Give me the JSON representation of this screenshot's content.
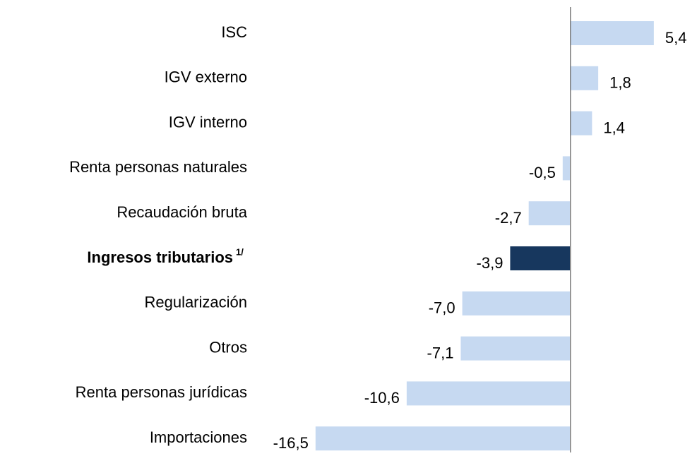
{
  "chart_data": {
    "type": "hbar",
    "categories": [
      "ISC",
      "IGV externo",
      "IGV interno",
      "Renta personas naturales",
      "Recaudación bruta",
      "Ingresos tributarios",
      "Regularización",
      "Otros",
      "Renta personas jurídicas",
      "Importaciones"
    ],
    "values": [
      5.4,
      1.8,
      1.4,
      -0.5,
      -2.7,
      -3.9,
      -7.0,
      -7.1,
      -10.6,
      -16.5
    ],
    "value_labels": [
      "5,4",
      "1,8",
      "1,4",
      "-0,5",
      "-2,7",
      "-3,9",
      "-7,0",
      "-7,1",
      "-10,6",
      "-16,5"
    ],
    "color": "#c6d9f1",
    "footnote": {
      "category": 5,
      "text": "1/",
      "color": "#17375e"
    },
    "xlim": [
      -18,
      6
    ]
  }
}
